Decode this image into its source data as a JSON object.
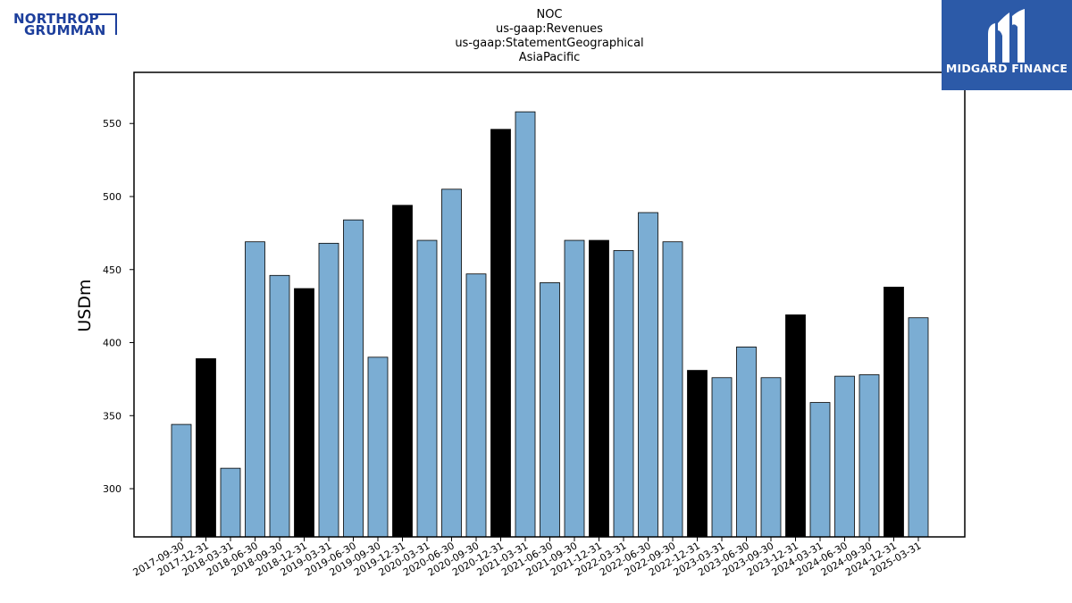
{
  "company_logo": {
    "line1": "NORTHROP",
    "line2": "GRUMMAN",
    "color": "#1d3f9c"
  },
  "brand": {
    "name": "MIDGARD FINANCE",
    "background": "#2c5aa8"
  },
  "chart_data": {
    "type": "bar",
    "title_lines": [
      "NOC",
      "us-gaap:Revenues",
      "us-gaap:StatementGeographical",
      "AsiaPacific"
    ],
    "xlabel": "",
    "ylabel": "USDm",
    "ylim": [
      267,
      585
    ],
    "yticks": [
      300,
      350,
      400,
      450,
      500,
      550
    ],
    "grid": false,
    "colors": {
      "quarter": "#7badd3",
      "year_end": "#000000",
      "edge": "#000000"
    },
    "categories": [
      "2017-09-30",
      "2017-12-31",
      "2018-03-31",
      "2018-06-30",
      "2018-09-30",
      "2018-12-31",
      "2019-03-31",
      "2019-06-30",
      "2019-09-30",
      "2019-12-31",
      "2020-03-31",
      "2020-06-30",
      "2020-09-30",
      "2020-12-31",
      "2021-03-31",
      "2021-06-30",
      "2021-09-30",
      "2021-12-31",
      "2022-03-31",
      "2022-06-30",
      "2022-09-30",
      "2022-12-31",
      "2023-03-31",
      "2023-06-30",
      "2023-09-30",
      "2023-12-31",
      "2024-03-31",
      "2024-06-30",
      "2024-09-30",
      "2024-12-31",
      "2025-03-31"
    ],
    "values": [
      344,
      389,
      314,
      469,
      446,
      437,
      468,
      484,
      390,
      494,
      470,
      505,
      447,
      546,
      558,
      441,
      470,
      470,
      463,
      489,
      469,
      381,
      376,
      397,
      376,
      419,
      359,
      377,
      378,
      438,
      417
    ],
    "year_end": [
      false,
      true,
      false,
      false,
      false,
      true,
      false,
      false,
      false,
      true,
      false,
      false,
      false,
      true,
      false,
      false,
      false,
      true,
      false,
      false,
      false,
      true,
      false,
      false,
      false,
      true,
      false,
      false,
      false,
      true,
      false
    ]
  }
}
